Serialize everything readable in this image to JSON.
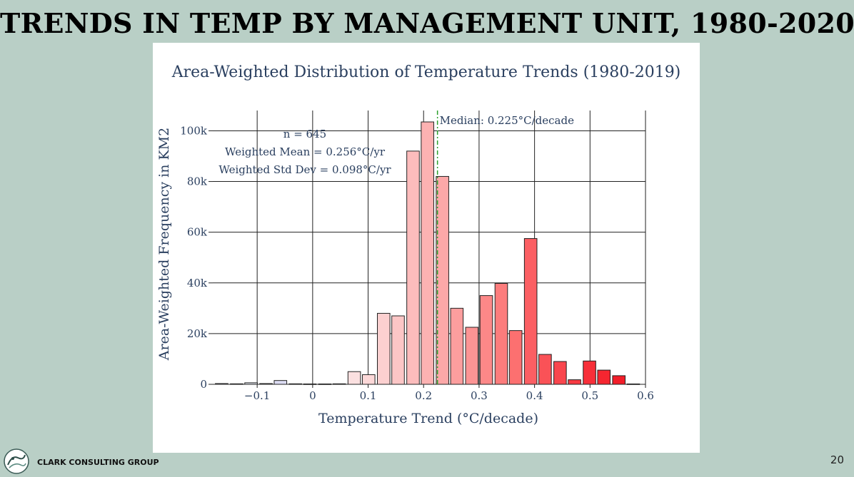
{
  "slide": {
    "title": "TRENDS IN TEMP BY MANAGEMENT UNIT, 1980-2020",
    "company": "CLARK CONSULTING GROUP",
    "page_number": "20"
  },
  "chart_data": {
    "type": "bar",
    "title": "Area-Weighted Distribution of Temperature Trends (1980-2019)",
    "xlabel": "Temperature Trend (°C/decade)",
    "ylabel": "Area-Weighted Frequency in KM2",
    "xlim": [
      -0.18,
      0.6
    ],
    "ylim": [
      0,
      108000
    ],
    "x_ticks": [
      -0.1,
      0,
      0.1,
      0.2,
      0.3,
      0.4,
      0.5,
      0.6
    ],
    "x_tick_labels": [
      "−0.1",
      "0",
      "0.1",
      "0.2",
      "0.3",
      "0.4",
      "0.5",
      "0.6"
    ],
    "y_ticks": [
      0,
      20000,
      40000,
      60000,
      80000,
      100000
    ],
    "y_tick_labels": [
      "0",
      "20k",
      "40k",
      "60k",
      "80k",
      "100k"
    ],
    "grid": true,
    "bin_width": 0.0265,
    "bins": [
      {
        "x": -0.164,
        "value": 300,
        "color": "#dde6f2"
      },
      {
        "x": -0.137,
        "value": 200,
        "color": "#e3e9f4"
      },
      {
        "x": -0.111,
        "value": 600,
        "color": "#e8ecf5"
      },
      {
        "x": -0.084,
        "value": 300,
        "color": "#eceef6"
      },
      {
        "x": -0.058,
        "value": 1500,
        "color": "#dcdcf3"
      },
      {
        "x": -0.031,
        "value": 200,
        "color": "#f2f1f7"
      },
      {
        "x": -0.005,
        "value": 150,
        "color": "#f8f2f3"
      },
      {
        "x": 0.022,
        "value": 150,
        "color": "#fbeeee"
      },
      {
        "x": 0.048,
        "value": 200,
        "color": "#fce7e7"
      },
      {
        "x": 0.075,
        "value": 5000,
        "color": "#fbe0e0"
      },
      {
        "x": 0.101,
        "value": 3800,
        "color": "#fcd8d8"
      },
      {
        "x": 0.128,
        "value": 28000,
        "color": "#fcd0d0"
      },
      {
        "x": 0.154,
        "value": 27000,
        "color": "#fcc6c6"
      },
      {
        "x": 0.181,
        "value": 92000,
        "color": "#fcbcbc"
      },
      {
        "x": 0.207,
        "value": 103500,
        "color": "#fcb2b2"
      },
      {
        "x": 0.234,
        "value": 82000,
        "color": "#fca8a8"
      },
      {
        "x": 0.26,
        "value": 30000,
        "color": "#fc9e9e"
      },
      {
        "x": 0.287,
        "value": 22500,
        "color": "#fc9494"
      },
      {
        "x": 0.313,
        "value": 35000,
        "color": "#fc8888"
      },
      {
        "x": 0.34,
        "value": 39800,
        "color": "#fc7c7c"
      },
      {
        "x": 0.366,
        "value": 21200,
        "color": "#fc7070"
      },
      {
        "x": 0.393,
        "value": 57500,
        "color": "#fb5f63"
      },
      {
        "x": 0.419,
        "value": 11800,
        "color": "#fa5257"
      },
      {
        "x": 0.446,
        "value": 9000,
        "color": "#f9464d"
      },
      {
        "x": 0.472,
        "value": 1800,
        "color": "#f83a42"
      },
      {
        "x": 0.499,
        "value": 9200,
        "color": "#f72f39"
      },
      {
        "x": 0.525,
        "value": 5600,
        "color": "#f52630"
      },
      {
        "x": 0.552,
        "value": 3400,
        "color": "#f21d29"
      },
      {
        "x": 0.578,
        "value": 150,
        "color": "#ee1624"
      }
    ],
    "median": {
      "x": 0.225,
      "label": "Median: 0.225°C/decade",
      "color": "#2ca02c"
    },
    "stats": {
      "n": "n = 645",
      "mean": "Weighted Mean = 0.256°C/yr",
      "std": "Weighted Std Dev = 0.098°C/yr"
    }
  }
}
